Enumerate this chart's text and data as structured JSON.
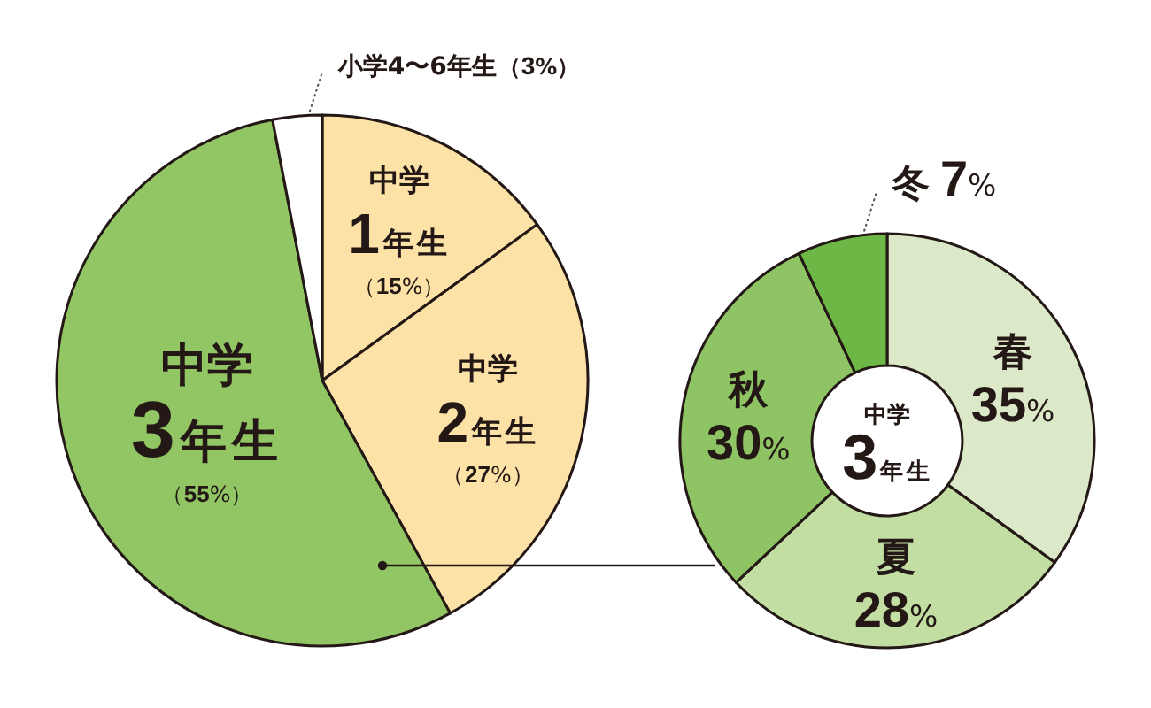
{
  "chart_data": [
    {
      "type": "pie",
      "categories": [
        "中学1年生",
        "中学2年生",
        "中学3年生",
        "小学4〜6年生"
      ],
      "values": [
        15,
        27,
        55,
        3
      ],
      "value_labels": [
        "（15%）",
        "（27%）",
        "（55%）",
        "（3%）"
      ],
      "colors": [
        "#fde2a7",
        "#fde2a7",
        "#92c665",
        "#ffffff"
      ]
    },
    {
      "type": "donut",
      "title": "中学3年生",
      "categories": [
        "春",
        "夏",
        "秋",
        "冬"
      ],
      "values": [
        35,
        28,
        30,
        7
      ],
      "value_labels": [
        "35%",
        "28%",
        "30%",
        "7%"
      ],
      "colors": [
        "#dce9c9",
        "#c3dea2",
        "#8ec463",
        "#6db746"
      ]
    }
  ]
}
